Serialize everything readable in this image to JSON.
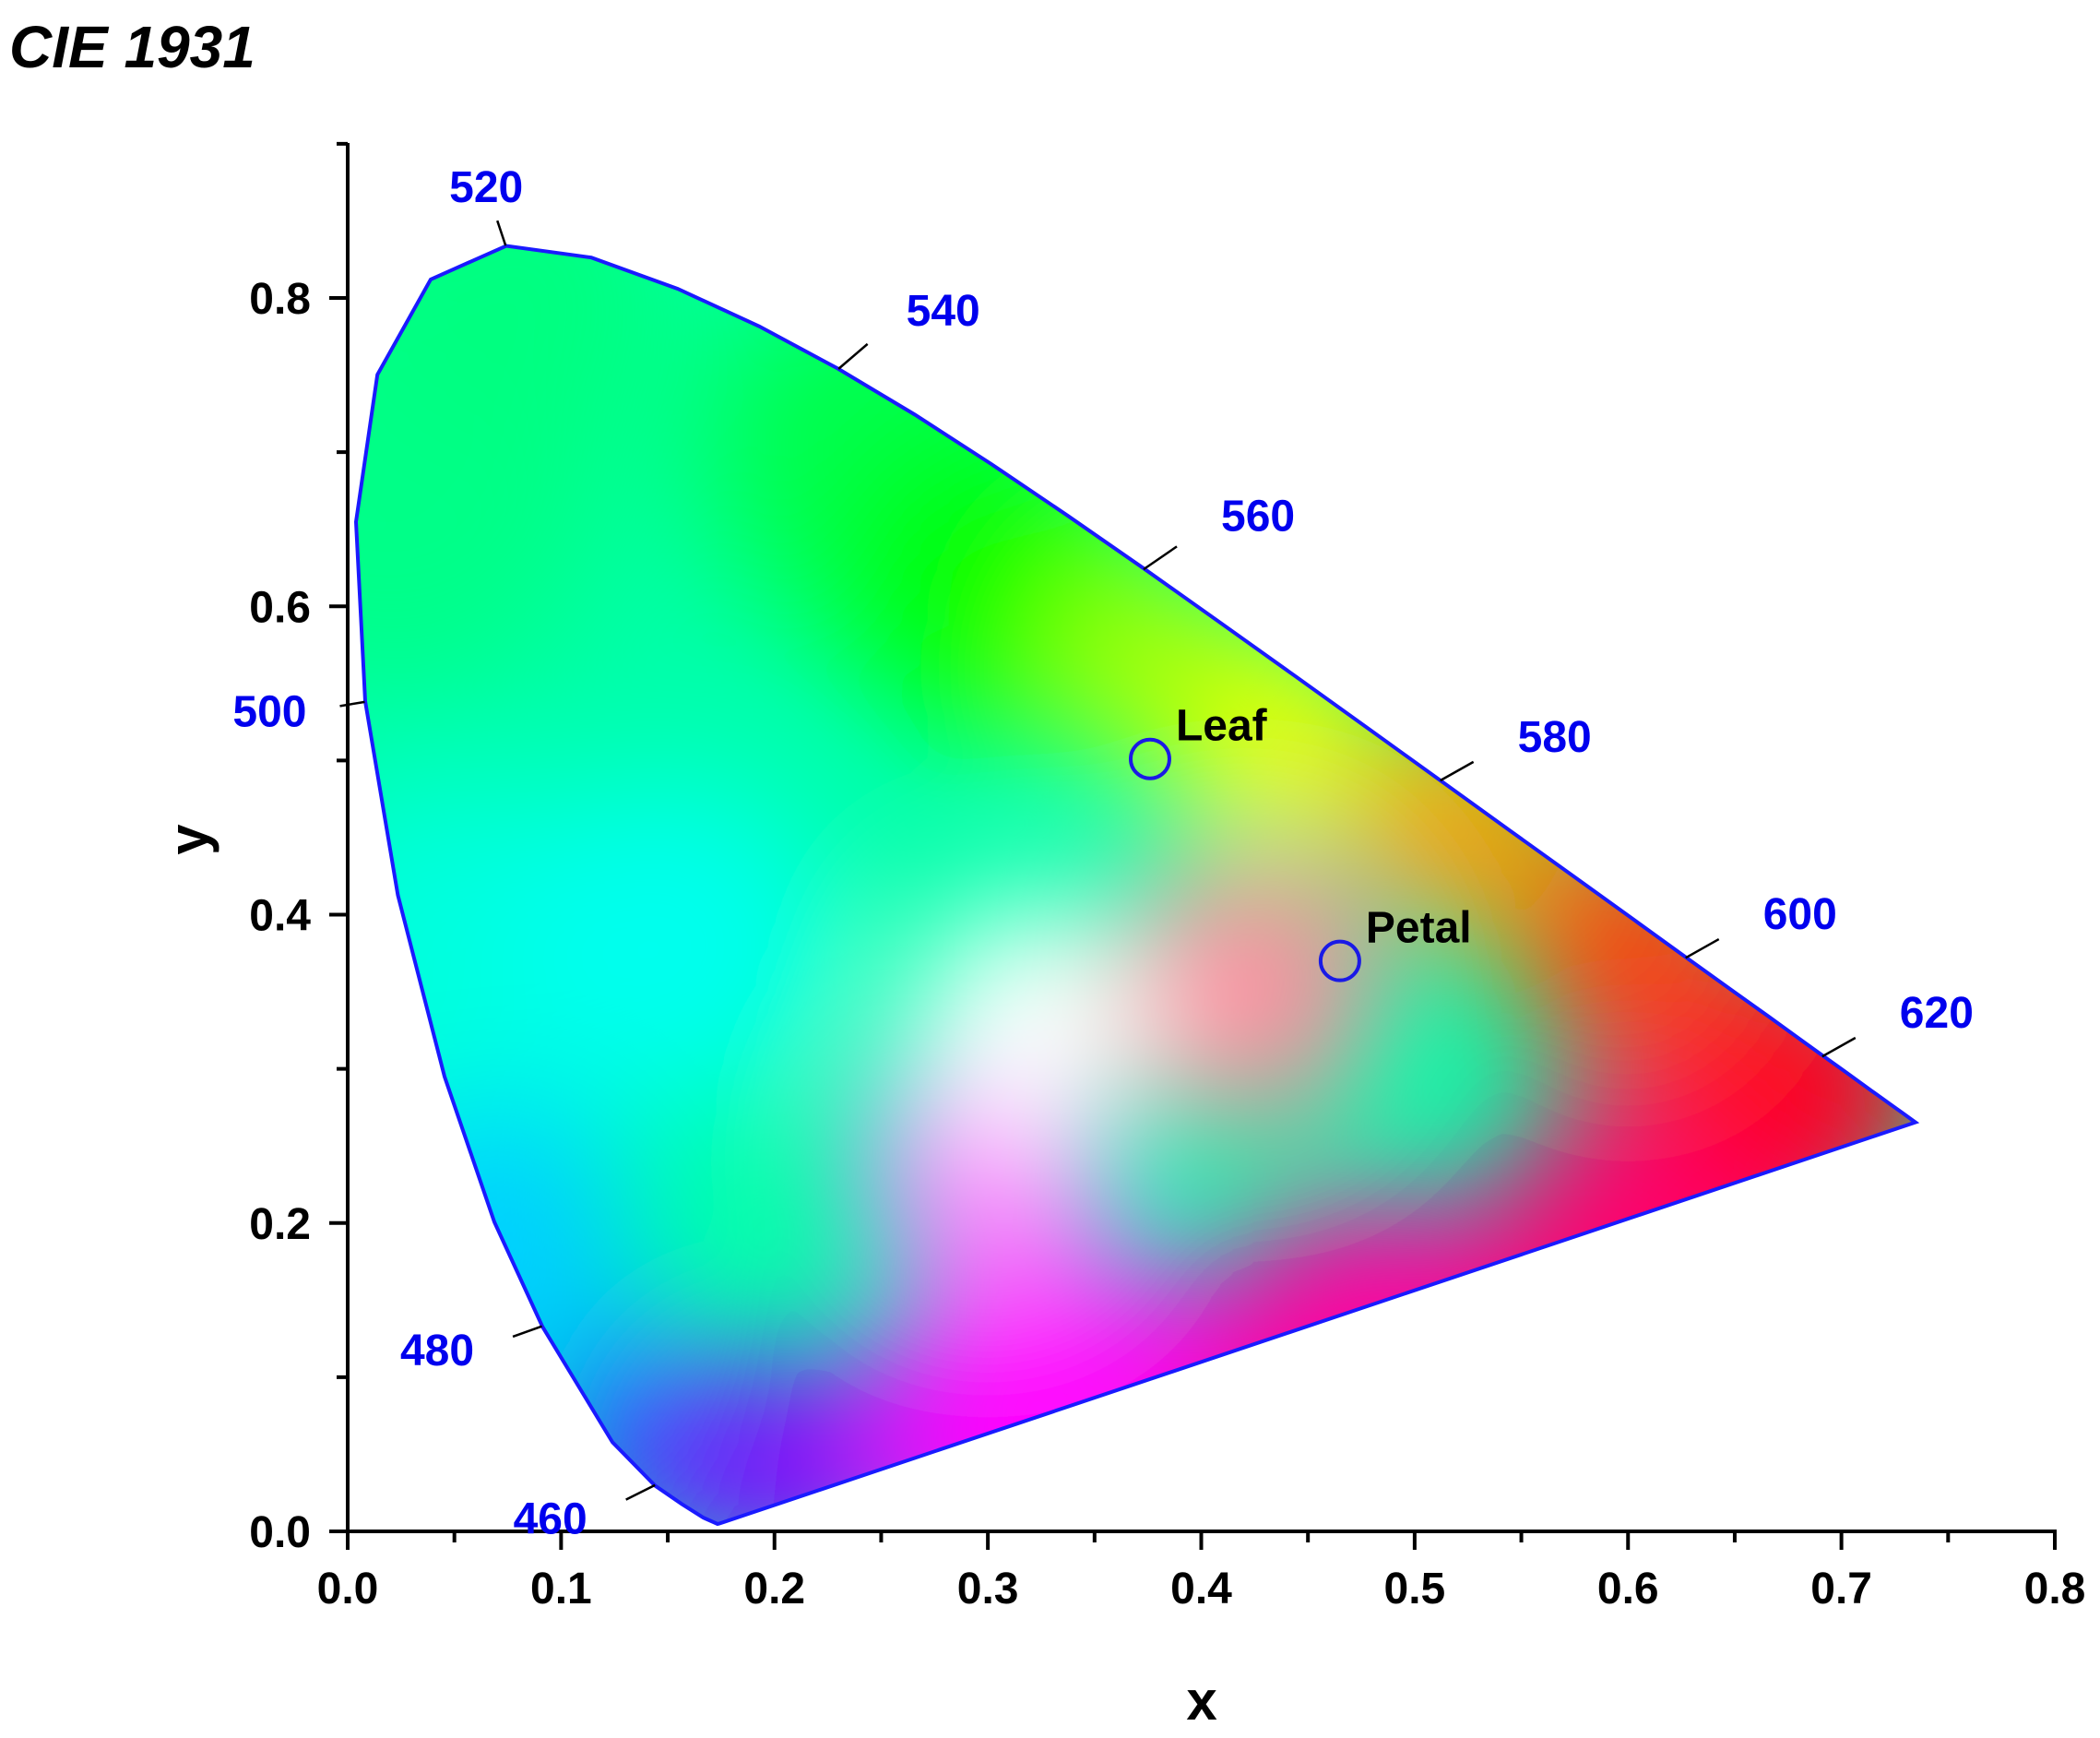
{
  "chart_data": {
    "type": "scatter",
    "title": "CIE 1931",
    "xlabel": "x",
    "ylabel": "y",
    "xlim": [
      0.0,
      0.8
    ],
    "ylim": [
      0.0,
      0.9
    ],
    "x_ticks": [
      "0.0",
      "0.1",
      "0.2",
      "0.3",
      "0.4",
      "0.5",
      "0.6",
      "0.7",
      "0.8"
    ],
    "y_ticks": [
      "0.0",
      "0.2",
      "0.4",
      "0.6",
      "0.8"
    ],
    "points": [
      {
        "name": "Leaf",
        "x": 0.376,
        "y": 0.501
      },
      {
        "name": "Petal",
        "x": 0.465,
        "y": 0.37
      }
    ],
    "wavelength_labels": [
      {
        "nm": "460",
        "x": 0.144,
        "y": 0.03
      },
      {
        "nm": "480",
        "x": 0.091,
        "y": 0.133
      },
      {
        "nm": "500",
        "x": 0.008,
        "y": 0.538
      },
      {
        "nm": "520",
        "x": 0.074,
        "y": 0.834
      },
      {
        "nm": "540",
        "x": 0.23,
        "y": 0.754
      },
      {
        "nm": "560",
        "x": 0.373,
        "y": 0.624
      },
      {
        "nm": "580",
        "x": 0.512,
        "y": 0.487
      },
      {
        "nm": "600",
        "x": 0.627,
        "y": 0.372
      },
      {
        "nm": "620",
        "x": 0.691,
        "y": 0.308
      }
    ],
    "grid": false,
    "colors": {
      "locus": "#1a1aff",
      "wavelength_label": "#0000ee",
      "marker": "#1a1ae6",
      "axis": "#000000"
    }
  }
}
